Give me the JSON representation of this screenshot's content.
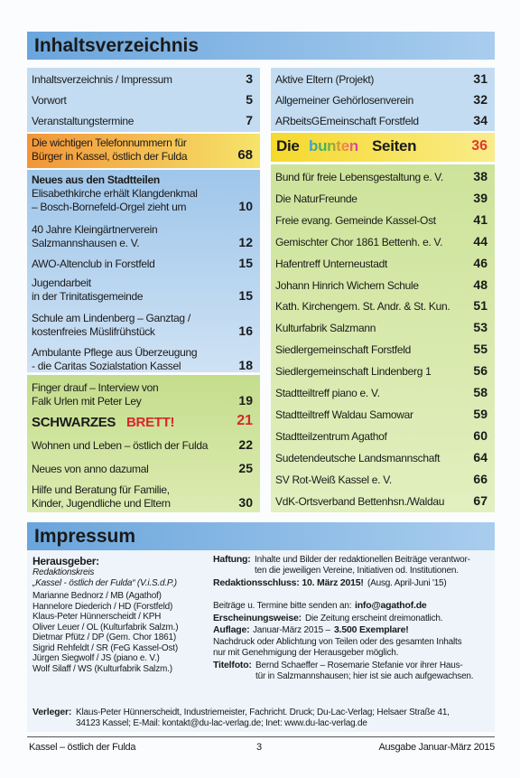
{
  "header": {
    "title": "Inhaltsverzeichnis"
  },
  "left": {
    "top": [
      {
        "lines": [
          "Inhaltsverzeichnis / Impressum"
        ],
        "page": 3
      },
      {
        "lines": [
          "Vorwort"
        ],
        "page": 5
      },
      {
        "lines": [
          "Veranstaltungstermine"
        ],
        "page": 7
      }
    ],
    "phone": {
      "lines": [
        "Die wichtigen Telefonnummern für",
        "Bürger in Kassel, östlich der Fulda"
      ],
      "page": 68
    },
    "stadtteile": {
      "heading": "Neues aus den Stadtteilen",
      "items": [
        {
          "lines": [
            "Elisabethkirche erhält Klangdenkmal",
            "– Bosch-Bornefeld-Orgel zieht um"
          ],
          "page": 10
        },
        {
          "lines": [
            "40 Jahre Kleingärtnerverein",
            "Salzmannshausen e. V."
          ],
          "page": 12
        },
        {
          "lines": [
            "AWO-Altenclub in Forstfeld"
          ],
          "page": 15
        },
        {
          "lines": [
            "Jugendarbeit",
            "in der Trinitatisgemeinde"
          ],
          "page": 15
        },
        {
          "lines": [
            "Schule am Lindenberg – Ganztag /",
            "kostenfreies Müslifrühstück"
          ],
          "page": 16
        },
        {
          "lines": [
            "Ambulante Pflege aus Überzeugung",
            "- die Caritas Sozialstation Kassel"
          ],
          "page": 18
        }
      ]
    },
    "green": [
      {
        "lines": [
          "Finger drauf – Interview von",
          "Falk Urlen mit Peter Ley"
        ],
        "page": 19
      },
      {
        "parts": [
          "SCHWARZES",
          "BRETT!"
        ],
        "page": 21
      },
      {
        "lines": [
          "Wohnen und Leben – östlich der Fulda"
        ],
        "page": 22
      },
      {
        "lines": [
          "Neues von anno dazumal"
        ],
        "page": 25
      },
      {
        "lines": [
          "Hilfe und Beratung für Familie,",
          "Kinder, Jugendliche und Eltern"
        ],
        "page": 30
      }
    ]
  },
  "right": {
    "top": [
      {
        "lines": [
          "Aktive Eltern (Projekt)"
        ],
        "page": 31
      },
      {
        "lines": [
          "Allgemeiner Gehörlosenverein"
        ],
        "page": 32
      },
      {
        "lines": [
          "ARbeitsGEmeinschaft Forstfeld"
        ],
        "page": 34
      }
    ],
    "bunte": {
      "parts": [
        "Die",
        "bunten",
        "Seiten"
      ],
      "page": 36
    },
    "green": [
      {
        "lines": [
          "Bund für freie Lebensgestaltung e. V."
        ],
        "page": 38
      },
      {
        "lines": [
          "Die NaturFreunde"
        ],
        "page": 39
      },
      {
        "lines": [
          "Freie evang. Gemeinde Kassel-Ost"
        ],
        "page": 41
      },
      {
        "lines": [
          "Gemischter Chor 1861 Bettenh. e. V."
        ],
        "page": 44
      },
      {
        "lines": [
          "Hafentreff Unterneustadt"
        ],
        "page": 46
      },
      {
        "lines": [
          "Johann Hinrich Wichern Schule"
        ],
        "page": 48
      },
      {
        "lines": [
          "Kath. Kirchengem. St. Andr. & St. Kun."
        ],
        "page": 51
      },
      {
        "lines": [
          "Kulturfabrik Salzmann"
        ],
        "page": 53
      },
      {
        "lines": [
          "Siedlergemeinschaft Forstfeld"
        ],
        "page": 55
      },
      {
        "lines": [
          "Siedlergemeinschaft Lindenberg 1"
        ],
        "page": 56
      },
      {
        "lines": [
          "Stadtteiltreff piano e. V."
        ],
        "page": 58
      },
      {
        "lines": [
          "Stadtteiltreff Waldau Samowar"
        ],
        "page": 59
      },
      {
        "lines": [
          "Stadtteilzentrum Agathof"
        ],
        "page": 60
      },
      {
        "lines": [
          "Sudetendeutsche Landsmannschaft"
        ],
        "page": 64
      },
      {
        "lines": [
          "SV Rot-Weiß Kassel e. V."
        ],
        "page": 66
      },
      {
        "lines": [
          "VdK-Ortsverband Bettenhsn./Waldau"
        ],
        "page": 67
      }
    ]
  },
  "impressum": {
    "title": "Impressum",
    "herausgeber": "Herausgeber:",
    "kreis": "Redaktionskreis",
    "zeitung": "„Kassel - östlich der Fulda“ (V.i.S.d.P.)",
    "members": [
      "Marianne Bednorz / MB (Agathof)",
      "Hannelore Diederich / HD (Forstfeld)",
      "Klaus-Peter Hünnerscheidt / KPH",
      "Oliver Leuer / OL (Kulturfabrik Salzm.)",
      "Dietmar Pfütz / DP (Gem. Chor 1861)",
      "Sigrid Rehfeldt / SR (FeG Kassel-Ost)",
      "Jürgen Siegwolf / JS (piano e. V.)",
      "Wolf Silaff / WS (Kulturfabrik Salzm.)"
    ],
    "info": [
      {
        "label": "Haftung:",
        "lines": [
          "Inhalte und Bilder der redaktionellen Beiträge verantwor-",
          "ten die jeweiligen Vereine, Initiativen od. Institutionen."
        ]
      },
      {
        "label": "Redaktionsschluss: 10. März 2015!",
        "lines": [
          "(Ausg. April-Juni '15)"
        ]
      },
      {
        "label": "",
        "lines": [
          "Beiträge u. Termine bitte senden an:"
        ],
        "strong": "info@agathof.de"
      },
      {
        "label": "Erscheinungsweise:",
        "lines": [
          "Die Zeitung erscheint dreimonatlich."
        ]
      },
      {
        "label": "Auflage:",
        "lines": [
          "Januar-März 2015 –"
        ],
        "strong": "3.500 Exemplare!"
      },
      {
        "label": "",
        "lines": [
          "Nachdruck oder Ablichtung von Teilen oder des gesamten Inhalts",
          "nur mit Genehmigung der Herausgeber möglich."
        ]
      },
      {
        "label": "Titelfoto:",
        "lines": [
          "Bernd Schaeffer – Rosemarie Stefanie vor ihrer Haus-",
          "tür in Salzmannshausen; hier ist sie auch aufgewachsen."
        ]
      }
    ],
    "verleger": {
      "label": "Verleger:",
      "lines": [
        "Klaus-Peter Hünnerscheidt, Industriemeister, Fachricht. Druck; Du-Lac-Verlag; Helsaer Straße 41,",
        "34123 Kassel; E-Mail: kontakt@du-lac-verlag.de; Inet: www.du-lac-verlag.de"
      ]
    }
  },
  "footer": {
    "left": "Kassel – östlich der Fulda",
    "page": 3,
    "right": "Ausgabe Januar-März 2015"
  }
}
